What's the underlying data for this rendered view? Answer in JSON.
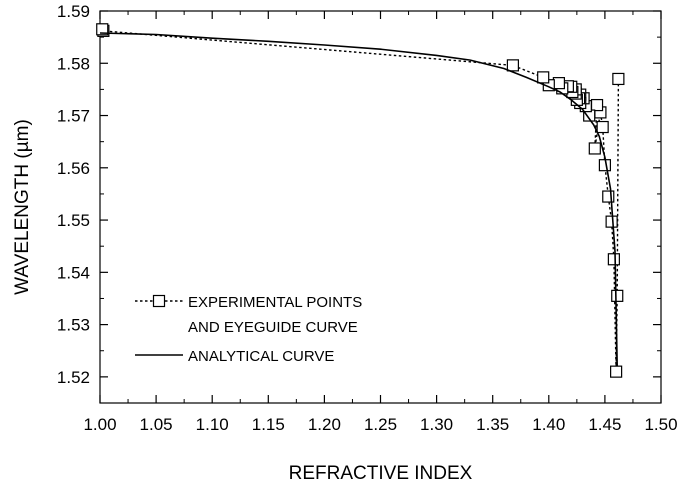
{
  "chart_data": {
    "type": "line",
    "xlabel": "REFRACTIVE INDEX",
    "ylabel": "WAVELENGTH (µm)",
    "xlim": [
      1.0,
      1.5
    ],
    "ylim": [
      1.515,
      1.59
    ],
    "xticks": [
      "1.00",
      "1.05",
      "1.10",
      "1.15",
      "1.20",
      "1.25",
      "1.30",
      "1.35",
      "1.40",
      "1.45",
      "1.50"
    ],
    "yticks": [
      "1.52",
      "1.53",
      "1.54",
      "1.55",
      "1.56",
      "1.57",
      "1.58",
      "1.59"
    ],
    "grid": false,
    "legend_position": "bottom-left",
    "legend": [
      "EXPERIMENTAL POINTS",
      "AND EYEGUIDE CURVE",
      "ANALYTICAL CURVE"
    ],
    "series": [
      {
        "name": "EXPERIMENTAL POINTS AND EYEGUIDE CURVE",
        "style": "dotted-line-square-markers",
        "x": [
          1.462,
          1.461,
          1.46,
          1.458,
          1.456,
          1.453,
          1.45,
          1.448,
          1.446,
          1.441,
          1.443,
          1.436,
          1.433,
          1.431,
          1.428,
          1.428,
          1.427,
          1.425,
          1.424,
          1.424,
          1.421,
          1.42,
          1.417,
          1.412,
          1.409,
          1.4,
          1.395,
          1.368,
          1.003,
          1.002
        ],
        "y": [
          1.577,
          1.5355,
          1.521,
          1.5425,
          1.5497,
          1.5545,
          1.5605,
          1.5678,
          1.5706,
          1.5637,
          1.572,
          1.57,
          1.5718,
          1.5733,
          1.574,
          1.5724,
          1.5733,
          1.573,
          1.5742,
          1.575,
          1.5745,
          1.5755,
          1.5756,
          1.5752,
          1.5762,
          1.5758,
          1.5773,
          1.5796,
          1.5862,
          1.5865
        ]
      },
      {
        "name": "ANALYTICAL CURVE",
        "style": "solid-line",
        "x": [
          1.0,
          1.05,
          1.1,
          1.15,
          1.2,
          1.25,
          1.3,
          1.33,
          1.36,
          1.38,
          1.4,
          1.41,
          1.42,
          1.43,
          1.44,
          1.445,
          1.45,
          1.455,
          1.459,
          1.461
        ],
        "y": [
          1.5858,
          1.5855,
          1.5848,
          1.5842,
          1.5835,
          1.5827,
          1.5815,
          1.5806,
          1.579,
          1.5773,
          1.5755,
          1.5745,
          1.573,
          1.5712,
          1.5682,
          1.566,
          1.562,
          1.556,
          1.544,
          1.522
        ]
      }
    ]
  }
}
